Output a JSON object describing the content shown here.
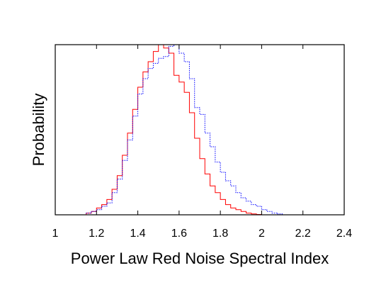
{
  "chart_data": {
    "type": "histogram",
    "title": "",
    "xlabel": "Power Law Red Noise Spectral Index",
    "ylabel": "Probability",
    "xlim": [
      1.0,
      2.4
    ],
    "ylim": [
      0,
      1
    ],
    "xticks": [
      1.0,
      1.2,
      1.4,
      1.6,
      1.8,
      2.0,
      2.2,
      2.4
    ],
    "xtick_labels": [
      "1",
      "1.2",
      "1.4",
      "1.6",
      "1.8",
      "2",
      "2.2",
      "2.4"
    ],
    "y_tick_labels_shown": false,
    "grid": false,
    "legend": "none",
    "bin_width": 0.025,
    "bin_start": 1.125,
    "series": [
      {
        "color": "#ff0000",
        "line_style": "solid",
        "values": [
          0.0,
          0.01,
          0.02,
          0.04,
          0.06,
          0.09,
          0.15,
          0.23,
          0.35,
          0.48,
          0.62,
          0.75,
          0.84,
          0.9,
          0.96,
          1.0,
          0.98,
          0.95,
          0.82,
          0.78,
          0.72,
          0.6,
          0.45,
          0.33,
          0.24,
          0.17,
          0.13,
          0.09,
          0.06,
          0.04,
          0.03,
          0.02,
          0.01,
          0.005,
          0.002,
          0.0,
          0.0,
          0.0,
          0.0,
          0.0
        ]
      },
      {
        "color": "#0000ff",
        "line_style": "dotted",
        "values": [
          0.0,
          0.01,
          0.02,
          0.03,
          0.05,
          0.07,
          0.13,
          0.21,
          0.32,
          0.44,
          0.58,
          0.71,
          0.8,
          0.86,
          0.89,
          0.92,
          0.93,
          0.99,
          1.0,
          0.95,
          0.9,
          0.8,
          0.63,
          0.59,
          0.48,
          0.4,
          0.31,
          0.25,
          0.2,
          0.17,
          0.13,
          0.1,
          0.08,
          0.06,
          0.05,
          0.03,
          0.02,
          0.01,
          0.005,
          0.0
        ]
      }
    ]
  }
}
